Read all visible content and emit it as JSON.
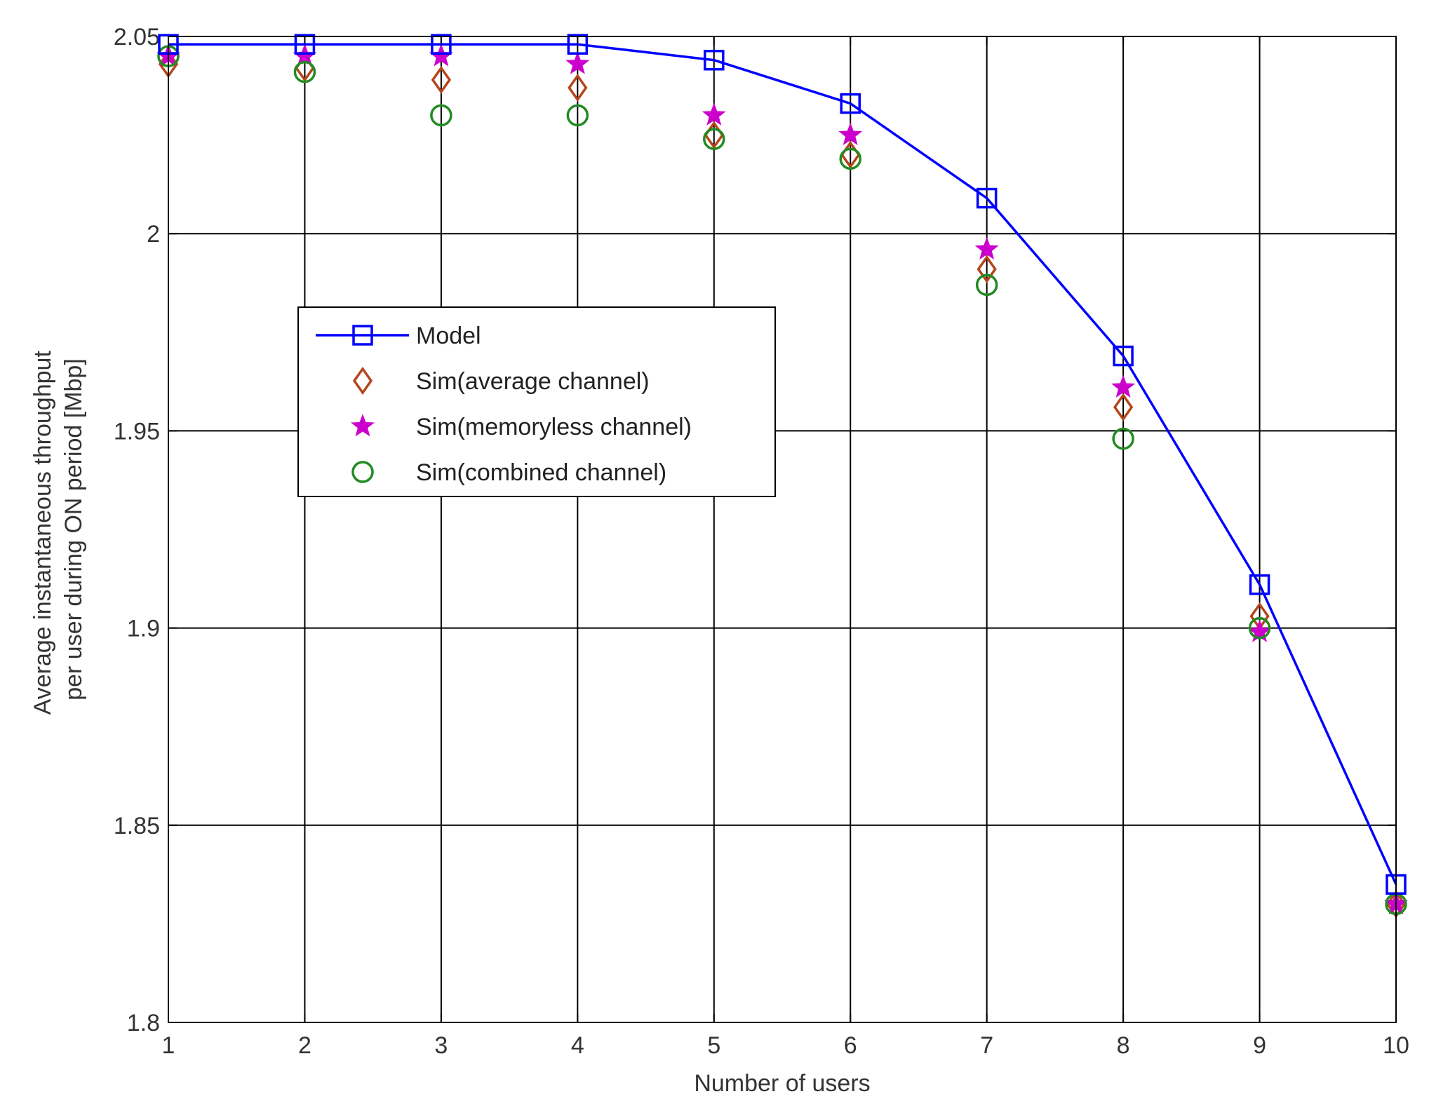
{
  "chart_data": {
    "type": "line",
    "title": "",
    "xlabel": "Number of  users",
    "ylabel_lines": [
      "Average instantaneous throughput",
      "per user during ON period [Mbp]"
    ],
    "xlim": [
      1,
      10
    ],
    "ylim": [
      1.8,
      2.05
    ],
    "x_ticks": [
      1,
      2,
      3,
      4,
      5,
      6,
      7,
      8,
      9,
      10
    ],
    "y_ticks": [
      1.8,
      1.85,
      1.9,
      1.95,
      2.0,
      2.05
    ],
    "y_tick_labels": [
      "1.8",
      "1.85",
      "1.9",
      "1.95",
      "2",
      "2.05"
    ],
    "grid": true,
    "legend_position": "upper-left, inside plot",
    "x": [
      1,
      2,
      3,
      4,
      5,
      6,
      7,
      8,
      9,
      10
    ],
    "series": [
      {
        "name": "Model",
        "marker": "square",
        "line": true,
        "color": "#0000ff",
        "values": [
          2.048,
          2.048,
          2.048,
          2.048,
          2.044,
          2.033,
          2.009,
          1.969,
          1.911,
          1.835
        ]
      },
      {
        "name": "Sim(average channel)",
        "marker": "diamond",
        "line": false,
        "color": "#b5451b",
        "values": [
          2.043,
          2.042,
          2.039,
          2.037,
          2.025,
          2.02,
          1.991,
          1.956,
          1.903,
          1.83
        ]
      },
      {
        "name": "Sim(memoryless channel)",
        "marker": "star",
        "line": false,
        "color": "#cc00cc",
        "values": [
          2.045,
          2.045,
          2.045,
          2.043,
          2.03,
          2.025,
          1.996,
          1.961,
          1.899,
          1.83
        ]
      },
      {
        "name": "Sim(combined channel)",
        "marker": "circle",
        "line": false,
        "color": "#228b22",
        "values": [
          2.045,
          2.041,
          2.03,
          2.03,
          2.024,
          2.019,
          1.987,
          1.948,
          1.9,
          1.83
        ]
      }
    ]
  }
}
